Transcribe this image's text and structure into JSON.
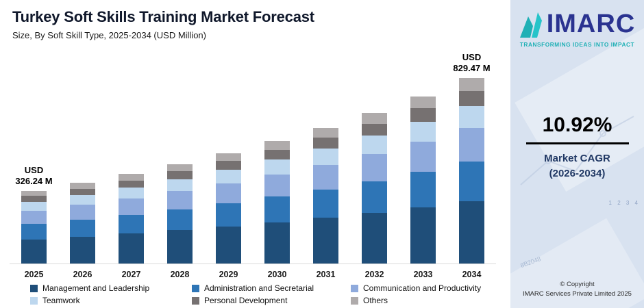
{
  "header": {
    "title": "Turkey Soft Skills Training Market Forecast",
    "subtitle": "Size, By Soft Skill Type, 2025-2034 (USD Million)"
  },
  "chart_data": {
    "type": "bar",
    "stacked": true,
    "title": "Turkey Soft Skills Training Market Forecast",
    "subtitle": "Size, By Soft Skill Type, 2025-2034 (USD Million)",
    "unit": "USD Million",
    "categories": [
      "2025",
      "2026",
      "2027",
      "2028",
      "2029",
      "2030",
      "2031",
      "2032",
      "2033",
      "2034"
    ],
    "totals": [
      326.24,
      361.87,
      401.39,
      445.22,
      493.84,
      547.77,
      607.59,
      673.94,
      747.54,
      829.47
    ],
    "series": [
      {
        "name": "Management and Leadership",
        "color": "#1f4e79",
        "values": [
          110.92,
          123.04,
          136.47,
          151.37,
          167.91,
          186.24,
          206.58,
          229.14,
          254.16,
          282.02
        ]
      },
      {
        "name": "Administration and Secretarial",
        "color": "#2e75b6",
        "values": [
          68.51,
          75.99,
          84.29,
          93.5,
          103.71,
          115.03,
          127.59,
          141.53,
          156.98,
          174.19
        ]
      },
      {
        "name": "Communication and Productivity",
        "color": "#8faadc",
        "values": [
          58.72,
          65.14,
          72.25,
          80.14,
          88.89,
          98.6,
          109.37,
          121.31,
          134.56,
          149.3
        ]
      },
      {
        "name": "Teamwork",
        "color": "#bdd7ee",
        "values": [
          39.15,
          43.42,
          48.17,
          53.43,
          59.26,
          65.73,
          72.91,
          80.87,
          89.7,
          99.54
        ]
      },
      {
        "name": "Personal Development",
        "color": "#767171",
        "values": [
          26.1,
          28.95,
          32.11,
          35.62,
          39.51,
          43.82,
          48.61,
          53.92,
          59.8,
          66.36
        ]
      },
      {
        "name": "Others",
        "color": "#afabab",
        "values": [
          22.84,
          25.33,
          28.1,
          31.17,
          34.57,
          38.34,
          42.53,
          47.18,
          52.33,
          58.06
        ]
      }
    ],
    "annotations": [
      {
        "index": 0,
        "category": "2025",
        "lines": [
          "USD",
          "326.24 M"
        ]
      },
      {
        "index": 9,
        "category": "2034",
        "lines": [
          "USD",
          "829.47 M"
        ]
      }
    ],
    "legend_position": "bottom",
    "ylim": [
      0,
      830
    ],
    "grid": false
  },
  "sidebar": {
    "logo_text": "IMARC",
    "tagline": "TRANSFORMING IDEAS INTO IMPACT",
    "cagr_value": "10.92%",
    "cagr_line1": "Market CAGR",
    "cagr_line2": "(2026-2034)",
    "copyright_line1": "© Copyright",
    "copyright_line2": "IMARC Services Private Limited 2025",
    "watermark_axis": "1 2 3 4",
    "watermark_code": "8B2048",
    "colors": {
      "background": "#d8e2f0",
      "brand_navy": "#2a3390",
      "brand_teal": "#1fb0b5",
      "cagr_text": "#203864"
    }
  }
}
